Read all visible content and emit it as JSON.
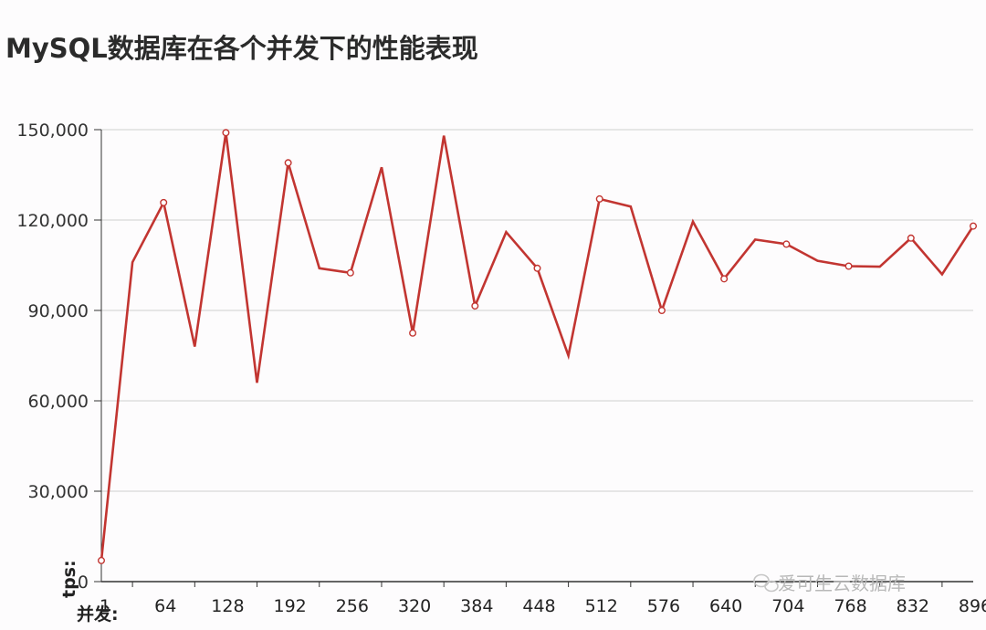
{
  "title": "MySQL数据库在各个并发下的性能表现",
  "watermark": "爱可生云数据库",
  "chart_data": {
    "type": "line",
    "title": "MySQL数据库在各个并发下的性能表现",
    "xlabel": "并发:",
    "ylabel": "tps:",
    "x": [
      1,
      32,
      64,
      96,
      128,
      160,
      192,
      224,
      256,
      288,
      320,
      352,
      384,
      416,
      448,
      480,
      512,
      544,
      576,
      608,
      640,
      672,
      704,
      736,
      768,
      800,
      832,
      864,
      896
    ],
    "x_ticks": [
      "1",
      "64",
      "128",
      "192",
      "256",
      "320",
      "384",
      "448",
      "512",
      "576",
      "640",
      "704",
      "768",
      "832",
      "896"
    ],
    "series": [
      {
        "values": [
          7000,
          106000,
          125800,
          78000,
          149000,
          66000,
          139000,
          104000,
          102500,
          137500,
          82500,
          148000,
          91500,
          116000,
          104000,
          75000,
          127000,
          124500,
          90000,
          119500,
          100500,
          113500,
          112000,
          106500,
          104700,
          104500,
          114000,
          102000,
          118000
        ],
        "markers": [
          true,
          false,
          true,
          false,
          true,
          false,
          true,
          false,
          true,
          false,
          true,
          false,
          true,
          false,
          true,
          false,
          true,
          false,
          true,
          false,
          true,
          false,
          true,
          false,
          true,
          false,
          true,
          false,
          true
        ],
        "color": "#c23531"
      }
    ],
    "y_ticks": [
      "0",
      "30,000",
      "60,000",
      "90,000",
      "120,000",
      "150,000"
    ],
    "ylim": [
      0,
      150000
    ],
    "xlim": [
      1,
      896
    ],
    "grid": true,
    "colors": {
      "line": "#c23531",
      "grid": "#cfcfcf",
      "axis": "#333333"
    }
  }
}
